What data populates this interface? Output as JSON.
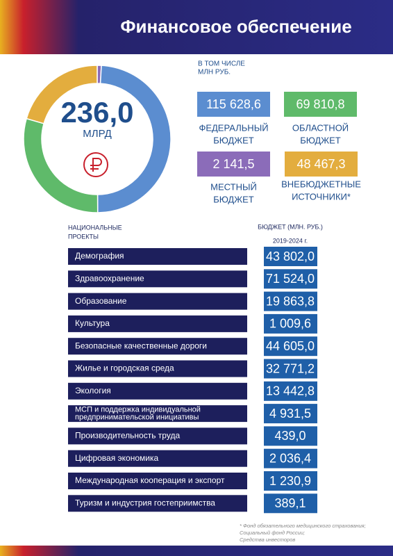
{
  "header": {
    "title": "Финансовое обеспечение"
  },
  "total": {
    "value": "236,0",
    "unit": "МЛРД"
  },
  "budgets_caption": [
    "В ТОМ ЧИСЛЕ",
    "МЛН РУБ."
  ],
  "budgets": [
    {
      "label": [
        "МЕСТНЫЙ",
        "БЮДЖЕТ"
      ],
      "value": 2141.5,
      "value_label": "2 141,5",
      "color": "#8b6cb9"
    },
    {
      "label": [
        "ФЕДЕРАЛЬНЫЙ",
        "БЮДЖЕТ"
      ],
      "value": 115628.6,
      "value_label": "115 628,6",
      "color": "#5b8dd0"
    },
    {
      "label": [
        "ОБЛАСТНОЙ",
        "БЮДЖЕТ"
      ],
      "value": 69810.8,
      "value_label": "69 810,8",
      "color": "#5fba6a"
    },
    {
      "label": [
        "ВНЕБЮДЖЕТНЫЕ",
        "ИСТОЧНИКИ*"
      ],
      "value": 48467.3,
      "value_label": "48 467,3",
      "color": "#e3ad3e"
    }
  ],
  "table": {
    "header_left": [
      "НАЦИОНАЛЬНЫЕ",
      "ПРОЕКТЫ"
    ],
    "header_right": "БЮДЖЕТ (МЛН. РУБ.)",
    "period": "2019-2024 г.",
    "rows": [
      {
        "name": [
          "Демография"
        ],
        "budget": "43 802,0"
      },
      {
        "name": [
          "Здравоохранение"
        ],
        "budget": "71 524,0"
      },
      {
        "name": [
          "Образование"
        ],
        "budget": "19 863,8"
      },
      {
        "name": [
          "Культура"
        ],
        "budget": "1 009,6"
      },
      {
        "name": [
          "Безопасные качественные дороги"
        ],
        "budget": "44 605,0"
      },
      {
        "name": [
          "Жилье и городская среда"
        ],
        "budget": "32 771,2"
      },
      {
        "name": [
          "Экология"
        ],
        "budget": "13 442,8"
      },
      {
        "name": [
          "МСП и поддержка индивидуальной",
          "предпринимательской инициативы"
        ],
        "budget": "4 931,5"
      },
      {
        "name": [
          "Производительность труда"
        ],
        "budget": "439,0"
      },
      {
        "name": [
          "Цифровая экономика"
        ],
        "budget": "2 036,4"
      },
      {
        "name": [
          "Международная кооперация и экспорт"
        ],
        "budget": "1 230,9"
      },
      {
        "name": [
          "Туризм и индустрия гостеприимства"
        ],
        "budget": "389,1"
      }
    ]
  },
  "footnote": [
    "* Фонд обязательного медицинского страхования;",
    "Социальный фонд России;",
    "Средства инвесторов"
  ]
}
